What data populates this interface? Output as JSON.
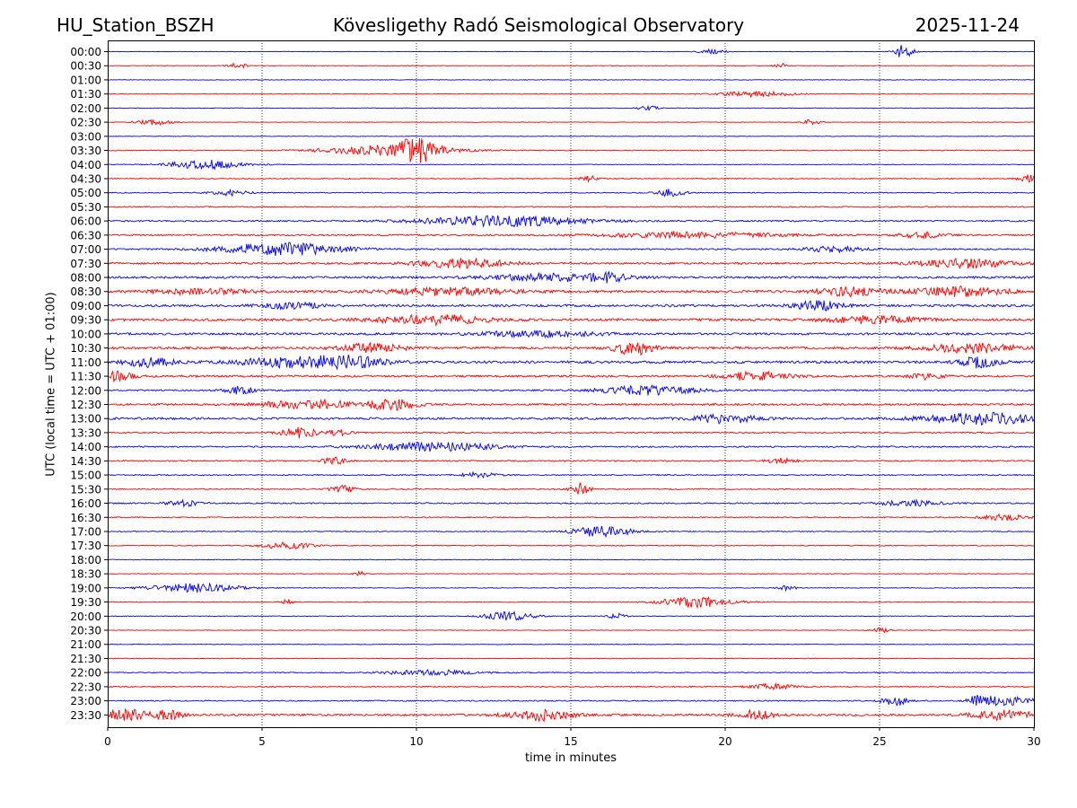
{
  "header": {
    "station": "HU_Station_BSZH",
    "title": "Kövesligethy Radó Seismological Observatory",
    "date": "2025-11-24"
  },
  "chart_data": {
    "type": "line",
    "title": "Kövesligethy Radó Seismological Observatory",
    "xlabel": "time in minutes",
    "ylabel": "UTC (local time = UTC + 01:00)",
    "xlim": [
      0,
      30
    ],
    "x_ticks": [
      0,
      5,
      10,
      15,
      20,
      25,
      30
    ],
    "grid": "vertical dotted at x ticks",
    "colors": [
      "#0000ee",
      "#ff0000"
    ],
    "rows": [
      {
        "label": "00:00",
        "noise": 0.25,
        "bursts": [
          [
            19.6,
            0.4,
            3
          ],
          [
            25.8,
            0.3,
            8
          ]
        ]
      },
      {
        "label": "00:30",
        "noise": 0.3,
        "bursts": [
          [
            4.2,
            0.3,
            3
          ],
          [
            21.8,
            0.2,
            3
          ]
        ]
      },
      {
        "label": "01:00",
        "noise": 0.3,
        "bursts": []
      },
      {
        "label": "01:30",
        "noise": 0.3,
        "bursts": [
          [
            21.0,
            1.2,
            3
          ]
        ]
      },
      {
        "label": "02:00",
        "noise": 0.3,
        "bursts": [
          [
            17.5,
            0.3,
            3
          ]
        ]
      },
      {
        "label": "02:30",
        "noise": 0.3,
        "bursts": [
          [
            1.5,
            0.6,
            3
          ],
          [
            22.8,
            0.3,
            3
          ]
        ]
      },
      {
        "label": "03:00",
        "noise": 0.3,
        "bursts": []
      },
      {
        "label": "03:30",
        "noise": 0.5,
        "bursts": [
          [
            9.2,
            2.0,
            6
          ],
          [
            10.0,
            0.6,
            10
          ]
        ]
      },
      {
        "label": "04:00",
        "noise": 0.35,
        "bursts": [
          [
            3.2,
            1.2,
            5
          ]
        ]
      },
      {
        "label": "04:30",
        "noise": 0.5,
        "bursts": [
          [
            15.6,
            0.3,
            3
          ],
          [
            29.8,
            0.3,
            4
          ]
        ]
      },
      {
        "label": "05:00",
        "noise": 0.5,
        "bursts": [
          [
            4.0,
            0.6,
            3
          ],
          [
            18.2,
            0.5,
            4
          ]
        ]
      },
      {
        "label": "05:30",
        "noise": 0.6,
        "bursts": []
      },
      {
        "label": "06:00",
        "noise": 0.8,
        "bursts": [
          [
            12.8,
            2.5,
            6
          ]
        ]
      },
      {
        "label": "06:30",
        "noise": 0.8,
        "bursts": [
          [
            19.0,
            3.0,
            3
          ],
          [
            26.4,
            0.8,
            3
          ]
        ]
      },
      {
        "label": "07:00",
        "noise": 0.8,
        "bursts": [
          [
            5.6,
            2.0,
            7
          ],
          [
            23.5,
            1.0,
            3
          ]
        ]
      },
      {
        "label": "07:30",
        "noise": 1.0,
        "bursts": [
          [
            11.5,
            1.5,
            5
          ],
          [
            27.8,
            1.5,
            5
          ]
        ]
      },
      {
        "label": "08:00",
        "noise": 1.2,
        "bursts": [
          [
            14.5,
            2.0,
            4
          ],
          [
            16.2,
            0.5,
            4
          ]
        ]
      },
      {
        "label": "08:30",
        "noise": 1.3,
        "bursts": [
          [
            3.0,
            1.5,
            3
          ],
          [
            11.0,
            2.0,
            4
          ],
          [
            24.0,
            1.0,
            5
          ],
          [
            27.5,
            1.5,
            5
          ]
        ]
      },
      {
        "label": "09:00",
        "noise": 1.3,
        "bursts": [
          [
            23.0,
            0.8,
            5
          ],
          [
            6.0,
            1.0,
            3
          ]
        ]
      },
      {
        "label": "09:30",
        "noise": 1.3,
        "bursts": [
          [
            10.5,
            1.8,
            5
          ],
          [
            24.8,
            1.5,
            4
          ]
        ]
      },
      {
        "label": "10:00",
        "noise": 1.2,
        "bursts": [
          [
            14.0,
            2.0,
            3
          ]
        ]
      },
      {
        "label": "10:30",
        "noise": 1.3,
        "bursts": [
          [
            8.5,
            1.0,
            5
          ],
          [
            17.0,
            0.6,
            8
          ],
          [
            28.0,
            1.5,
            5
          ]
        ]
      },
      {
        "label": "11:00",
        "noise": 1.4,
        "bursts": [
          [
            1.3,
            0.8,
            5
          ],
          [
            5.8,
            1.5,
            5
          ],
          [
            7.8,
            1.2,
            6
          ],
          [
            28.2,
            0.6,
            6
          ]
        ]
      },
      {
        "label": "11:30",
        "noise": 1.1,
        "bursts": [
          [
            0.3,
            0.5,
            5
          ],
          [
            21.0,
            1.0,
            5
          ],
          [
            26.5,
            0.5,
            3
          ]
        ]
      },
      {
        "label": "12:00",
        "noise": 0.8,
        "bursts": [
          [
            4.3,
            0.5,
            4
          ],
          [
            17.5,
            1.5,
            5
          ]
        ]
      },
      {
        "label": "12:30",
        "noise": 1.0,
        "bursts": [
          [
            6.5,
            1.5,
            5
          ],
          [
            9.2,
            0.8,
            6
          ]
        ]
      },
      {
        "label": "13:00",
        "noise": 1.2,
        "bursts": [
          [
            20.0,
            1.0,
            5
          ],
          [
            28.5,
            2.0,
            6
          ]
        ]
      },
      {
        "label": "13:30",
        "noise": 0.7,
        "bursts": [
          [
            6.2,
            0.6,
            6
          ],
          [
            7.5,
            0.4,
            3
          ]
        ]
      },
      {
        "label": "14:00",
        "noise": 0.8,
        "bursts": [
          [
            10.5,
            2.0,
            5
          ]
        ]
      },
      {
        "label": "14:30",
        "noise": 0.7,
        "bursts": [
          [
            7.3,
            0.4,
            4
          ],
          [
            21.8,
            0.5,
            3
          ]
        ]
      },
      {
        "label": "15:00",
        "noise": 0.6,
        "bursts": [
          [
            12.0,
            0.6,
            3
          ]
        ]
      },
      {
        "label": "15:30",
        "noise": 0.6,
        "bursts": [
          [
            7.6,
            0.4,
            4
          ],
          [
            15.3,
            0.3,
            7
          ]
        ]
      },
      {
        "label": "16:00",
        "noise": 0.7,
        "bursts": [
          [
            2.5,
            0.6,
            3
          ],
          [
            26.0,
            1.0,
            3
          ]
        ]
      },
      {
        "label": "16:30",
        "noise": 0.6,
        "bursts": [
          [
            29.0,
            0.8,
            3
          ]
        ]
      },
      {
        "label": "17:00",
        "noise": 0.5,
        "bursts": [
          [
            16.0,
            1.0,
            6
          ]
        ]
      },
      {
        "label": "17:30",
        "noise": 0.5,
        "bursts": [
          [
            5.8,
            0.8,
            4
          ]
        ]
      },
      {
        "label": "18:00",
        "noise": 0.4,
        "bursts": []
      },
      {
        "label": "18:30",
        "noise": 0.35,
        "bursts": [
          [
            8.2,
            0.2,
            3
          ]
        ]
      },
      {
        "label": "19:00",
        "noise": 0.35,
        "bursts": [
          [
            2.8,
            1.5,
            5
          ],
          [
            22.0,
            0.3,
            3
          ]
        ]
      },
      {
        "label": "19:30",
        "noise": 0.4,
        "bursts": [
          [
            19.0,
            1.2,
            6
          ],
          [
            5.8,
            0.2,
            3
          ]
        ]
      },
      {
        "label": "20:00",
        "noise": 0.3,
        "bursts": [
          [
            13.0,
            0.8,
            5
          ],
          [
            16.5,
            0.3,
            3
          ]
        ]
      },
      {
        "label": "20:30",
        "noise": 0.3,
        "bursts": [
          [
            25.0,
            0.3,
            3
          ]
        ]
      },
      {
        "label": "21:00",
        "noise": 0.3,
        "bursts": []
      },
      {
        "label": "21:30",
        "noise": 0.35,
        "bursts": []
      },
      {
        "label": "22:00",
        "noise": 0.5,
        "bursts": [
          [
            10.5,
            1.5,
            3
          ]
        ]
      },
      {
        "label": "22:30",
        "noise": 0.55,
        "bursts": [
          [
            21.5,
            0.8,
            3
          ]
        ]
      },
      {
        "label": "23:00",
        "noise": 0.6,
        "bursts": [
          [
            25.5,
            0.4,
            6
          ],
          [
            28.2,
            0.4,
            6
          ],
          [
            29.2,
            0.8,
            5
          ]
        ]
      },
      {
        "label": "23:30",
        "noise": 1.1,
        "bursts": [
          [
            0.5,
            1.0,
            6
          ],
          [
            2.0,
            0.4,
            5
          ],
          [
            14.0,
            1.0,
            6
          ],
          [
            21.0,
            0.6,
            6
          ],
          [
            29.0,
            1.0,
            5
          ]
        ]
      }
    ]
  }
}
